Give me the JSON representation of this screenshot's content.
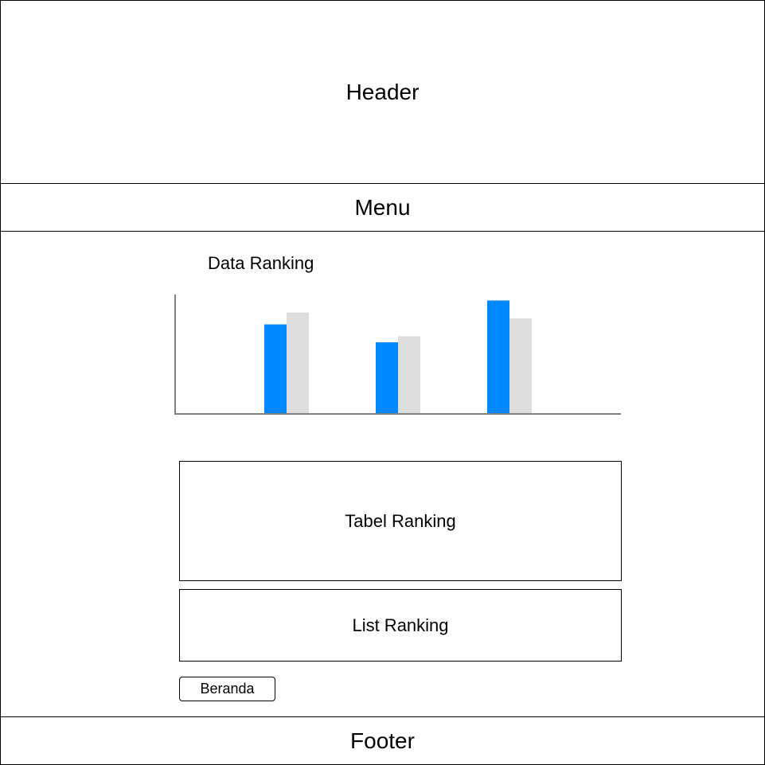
{
  "header": {
    "label": "Header"
  },
  "menu": {
    "label": "Menu"
  },
  "footer": {
    "label": "Footer"
  },
  "main": {
    "chart_title": "Data Ranking",
    "tabel_label": "Tabel Ranking",
    "list_label": "List Ranking",
    "beranda_button": "Beranda"
  },
  "colors": {
    "series_primary": "#0088ff",
    "series_secondary": "#dddddd",
    "axis": "#808080"
  },
  "chart_data": {
    "type": "bar",
    "categories": [
      "",
      "",
      ""
    ],
    "series": [
      {
        "values": [
          75,
          60,
          95
        ]
      },
      {
        "values": [
          85,
          65,
          80
        ]
      }
    ],
    "ylim": [
      0,
      100
    ],
    "title": "",
    "xlabel": "",
    "ylabel": "",
    "grid": false,
    "legend": "none"
  }
}
